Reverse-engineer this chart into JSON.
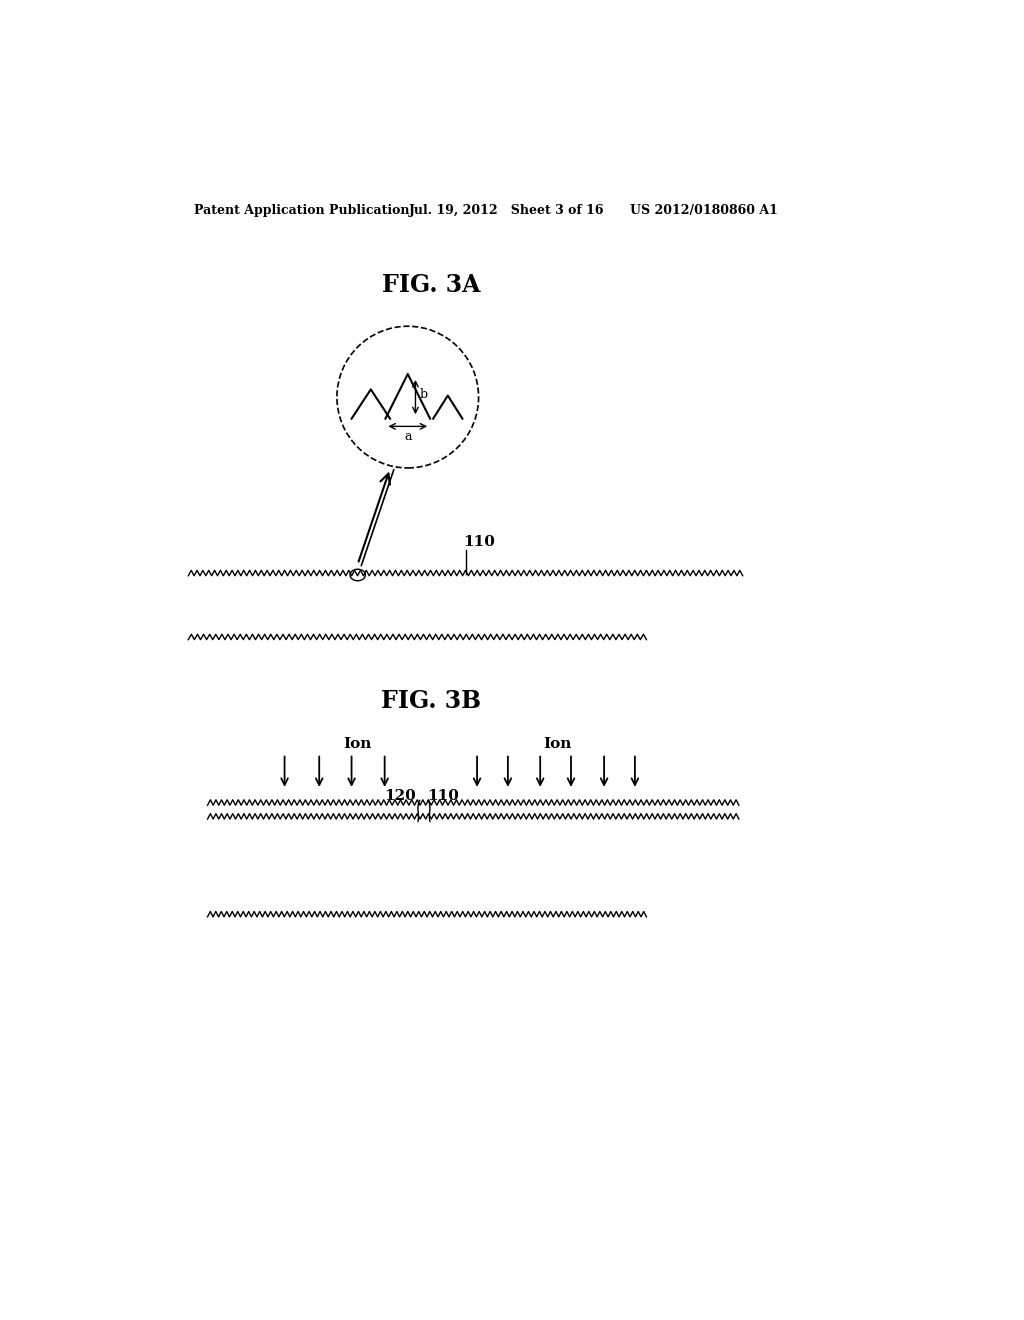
{
  "header_left": "Patent Application Publication",
  "header_mid": "Jul. 19, 2012   Sheet 3 of 16",
  "header_right": "US 2012/0180860 A1",
  "fig3a_title": "FIG. 3A",
  "fig3b_title": "FIG. 3B",
  "label_110_3a": "110",
  "label_110_3b": "110",
  "label_120_3b": "120",
  "label_ion_left": "Ion",
  "label_ion_right": "Ion",
  "bg_color": "#ffffff",
  "line_color": "#000000"
}
